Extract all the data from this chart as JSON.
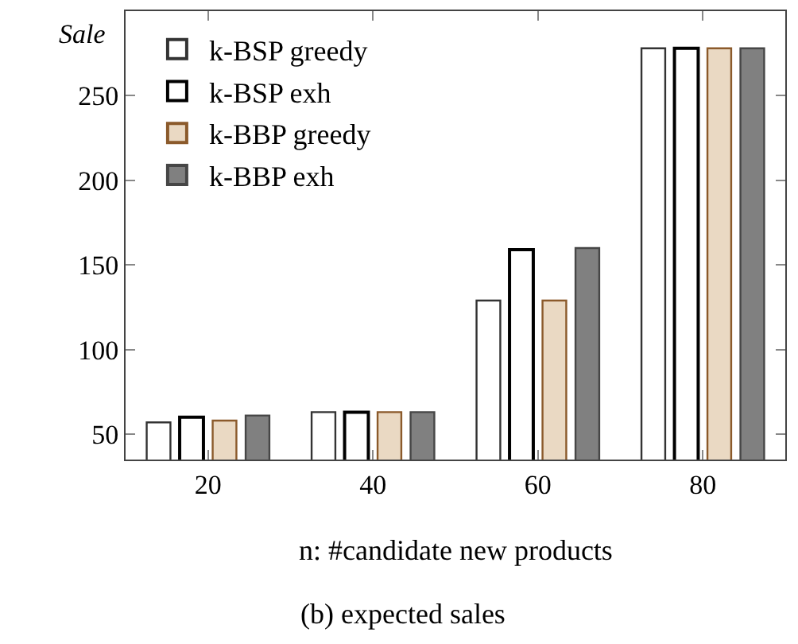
{
  "chart_data": {
    "type": "bar",
    "title": "(b) expected sales",
    "xlabel": "n: #candidate new products",
    "ylabel": "Sale",
    "x": [
      20,
      40,
      60,
      80
    ],
    "series": [
      {
        "name": "k-BSP greedy",
        "color": "#ffffff",
        "values": [
          57,
          63,
          129,
          278
        ]
      },
      {
        "name": "k-BSP exh",
        "color": "#ffffff",
        "values": [
          60,
          63,
          159,
          278
        ]
      },
      {
        "name": "k-BBP greedy",
        "color": "#ead9c3",
        "values": [
          58,
          63,
          129,
          278
        ]
      },
      {
        "name": "k-BBP exh",
        "color": "#808080",
        "values": [
          61,
          63,
          160,
          278
        ]
      }
    ],
    "xlim": [
      10,
      90
    ],
    "xticks": [
      20,
      40,
      60,
      80
    ],
    "ylim": [
      35,
      300
    ],
    "yticks": [
      50,
      100,
      150,
      200,
      250
    ],
    "legend": "top left"
  }
}
